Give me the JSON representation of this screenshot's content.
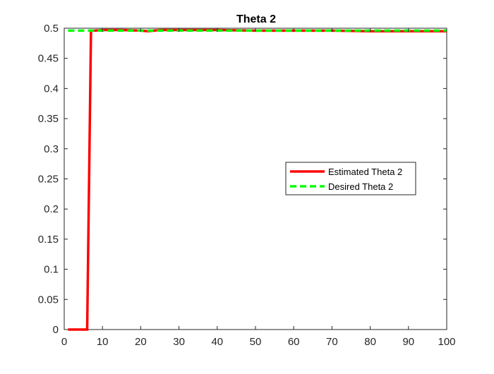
{
  "chart_data": {
    "type": "line",
    "title": "Theta 2",
    "xlabel": "",
    "ylabel": "",
    "xlim": [
      0,
      100
    ],
    "ylim": [
      0,
      0.5
    ],
    "xticks": [
      "0",
      "10",
      "20",
      "30",
      "40",
      "50",
      "60",
      "70",
      "80",
      "90",
      "100"
    ],
    "yticks": [
      "0",
      "0.05",
      "0.1",
      "0.15",
      "0.2",
      "0.25",
      "0.3",
      "0.35",
      "0.4",
      "0.45",
      "0.5"
    ],
    "grid": false,
    "legend": "center-right",
    "series": [
      {
        "name": "Estimated Theta 2",
        "color": "#ff0000",
        "style": "solid",
        "x": [
          1,
          2,
          3,
          4,
          5,
          6,
          7,
          8,
          10,
          15,
          20,
          22,
          25,
          30,
          40,
          50,
          60,
          70,
          80,
          90,
          100
        ],
        "y": [
          0,
          0,
          0,
          0,
          0,
          0,
          0.496,
          0.496,
          0.497,
          0.497,
          0.496,
          0.495,
          0.497,
          0.497,
          0.497,
          0.496,
          0.496,
          0.496,
          0.495,
          0.495,
          0.495
        ]
      },
      {
        "name": "Desired Theta 2",
        "color": "#00ff00",
        "style": "dashed",
        "x": [
          1,
          100
        ],
        "y": [
          0.496,
          0.496
        ]
      }
    ]
  }
}
